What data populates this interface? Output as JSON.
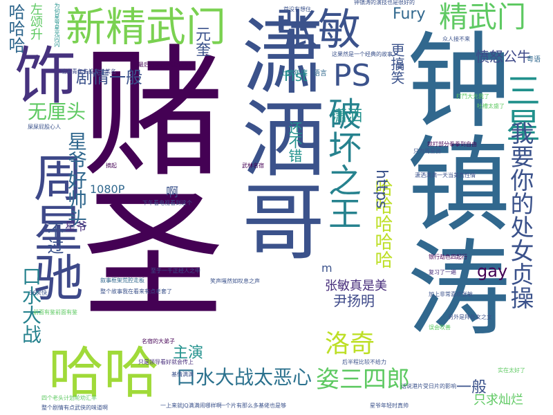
{
  "words": [
    {
      "text": "赌圣",
      "color": "#440154"
    },
    {
      "text": "潇洒哥",
      "color": "#3b528b"
    },
    {
      "text": "钟镇涛",
      "color": "#31688e"
    },
    {
      "text": "周星驰",
      "color": "#3e4989"
    },
    {
      "text": "哈哈",
      "color": "#a0da39"
    },
    {
      "text": "饰",
      "color": "#46327e"
    },
    {
      "text": "新精武门",
      "color": "#7ad151"
    },
    {
      "text": "张敏",
      "color": "#3b528b"
    },
    {
      "text": "三星",
      "color": "#21918c"
    },
    {
      "text": "精武门",
      "color": "#5ec962"
    },
    {
      "text": "PS",
      "color": "#3b528b"
    },
    {
      "text": "破坏之王",
      "color": "#26828e"
    },
    {
      "text": "洛奇",
      "color": "#bddf26"
    },
    {
      "text": "我要你的处女贞操",
      "color": "#3b528b"
    },
    {
      "text": "姿三四郎",
      "color": "#5ec962"
    },
    {
      "text": "口水大战太恶心",
      "color": "#2c728e"
    },
    {
      "text": "口水大战",
      "color": "#26828e"
    },
    {
      "text": "哈哈哈哈哈",
      "color": "#bddf26"
    },
    {
      "text": "星爷好帅头",
      "color": "#31688e"
    },
    {
      "text": "无厘头",
      "color": "#5ec962"
    },
    {
      "text": "剧情一般",
      "color": "#3b528b"
    },
    {
      "text": "哈哈哈",
      "color": "#31688e"
    },
    {
      "text": "左颂升",
      "color": "#5ec962"
    },
    {
      "text": "元奎",
      "color": "#3b528b"
    },
    {
      "text": "Fist",
      "color": "#21918c"
    },
    {
      "text": "Fury",
      "color": "#31688e"
    },
    {
      "text": "愤怒公牛",
      "color": "#3e4989"
    },
    {
      "text": "更搞笑",
      "color": "#3b528b"
    },
    {
      "text": "潇洒",
      "color": "#21918c"
    },
    {
      "text": "还不错",
      "color": "#21918c"
    },
    {
      "text": "https",
      "color": "#3b528b"
    },
    {
      "text": "gay",
      "color": "#440154"
    },
    {
      "text": "张敏真是美",
      "color": "#472d7b"
    },
    {
      "text": "尹扬明",
      "color": "#3e4989"
    },
    {
      "text": "一般",
      "color": "#3b528b"
    },
    {
      "text": "只求灿烂",
      "color": "#5ec962"
    },
    {
      "text": "主演",
      "color": "#21918c"
    },
    {
      "text": "不过",
      "color": "#3b528b"
    },
    {
      "text": "1080P",
      "color": "#31688e"
    },
    {
      "text": "啊",
      "color": "#3b528b"
    },
    {
      "text": "星爷",
      "color": "#472d7b"
    },
    {
      "text": "m",
      "color": "#3b528b"
    },
    {
      "text": "上映年度",
      "color": "#26828e"
    },
    {
      "text": "语言",
      "color": "#31688e"
    },
    {
      "text": "粤语",
      "color": "#31688e"
    },
    {
      "text": "笑",
      "color": "#3b528b"
    },
    {
      "text": "武林名宿",
      "color": "#440154"
    },
    {
      "text": "叙事框架荒腔走板",
      "color": "#31688e"
    },
    {
      "text": "一上来就JQ满满闹哪样啊",
      "color": "#3b528b"
    },
    {
      "text": "一个片有那么多基佬也是够",
      "color": "#3b528b"
    },
    {
      "text": "笑声嗤然如叹息之声",
      "color": "#3b528b"
    },
    {
      "text": "整个故事我在看来有点老套了",
      "color": "#3b528b"
    },
    {
      "text": "至于一千正经人之中",
      "color": "#3b528b"
    },
    {
      "text": "下午看电视看到这个",
      "color": "#3b528b"
    },
    {
      "text": "功夫青年先投奔了某名",
      "color": "#3e4989"
    },
    {
      "text": "最后打斗拼完段情的谁",
      "color": "#440154"
    },
    {
      "text": "潇洒满满一天当美真性情",
      "color": "#3b528b"
    },
    {
      "text": "只为周星驰",
      "color": "#3b528b"
    },
    {
      "text": "就打部分拳拳到自由",
      "color": "#440154"
    },
    {
      "text": "星爷年轻时真帅",
      "color": "#3b528b"
    },
    {
      "text": "话说港片受日片的影响",
      "color": "#3b528b"
    },
    {
      "text": "后半程比较不给力",
      "color": "#3b528b"
    },
    {
      "text": "四个老头计划轮劝汇丰",
      "color": "#5ec962"
    },
    {
      "text": "整个剧情有点武侠的味道啊",
      "color": "#3b528b"
    },
    {
      "text": "名宿的大弟子",
      "color": "#440154"
    },
    {
      "text": "只是领导看好就会传上",
      "color": "#472d7b"
    },
    {
      "text": "基情满满",
      "color": "#3b528b"
    },
    {
      "text": "银行劫色四起行",
      "color": "#440154"
    },
    {
      "text": "复习了一遍",
      "color": "#472d7b"
    },
    {
      "text": "加上非常喜欢张敏",
      "color": "#3b528b"
    },
    {
      "text": "另外是拜处女之女",
      "color": "#3b528b"
    },
    {
      "text": "误会吹善",
      "color": "#5ec962"
    },
    {
      "text": "屎屎屁股心人",
      "color": "#3b528b"
    },
    {
      "text": "众人接不来",
      "color": "#3b528b"
    },
    {
      "text": "这果然是一个经典的故事",
      "color": "#3b528b"
    },
    {
      "text": "首没有想住",
      "color": "#3b528b"
    },
    {
      "text": "钟镇涛的演技也是很好的",
      "color": "#3b528b"
    },
    {
      "text": "打鬥大元我了",
      "color": "#5ec962"
    },
    {
      "text": "吐槽太盛了",
      "color": "#5ec962"
    },
    {
      "text": "实在太好了",
      "color": "#5ec962"
    },
    {
      "text": "为何星爷星光闪闪",
      "color": "#21918c"
    },
    {
      "text": "摘起",
      "color": "#440154"
    },
    {
      "text": "36笑快",
      "color": "#3b528b"
    },
    {
      "text": "前面有鉴前面有鉴",
      "color": "#5ec962"
    }
  ]
}
